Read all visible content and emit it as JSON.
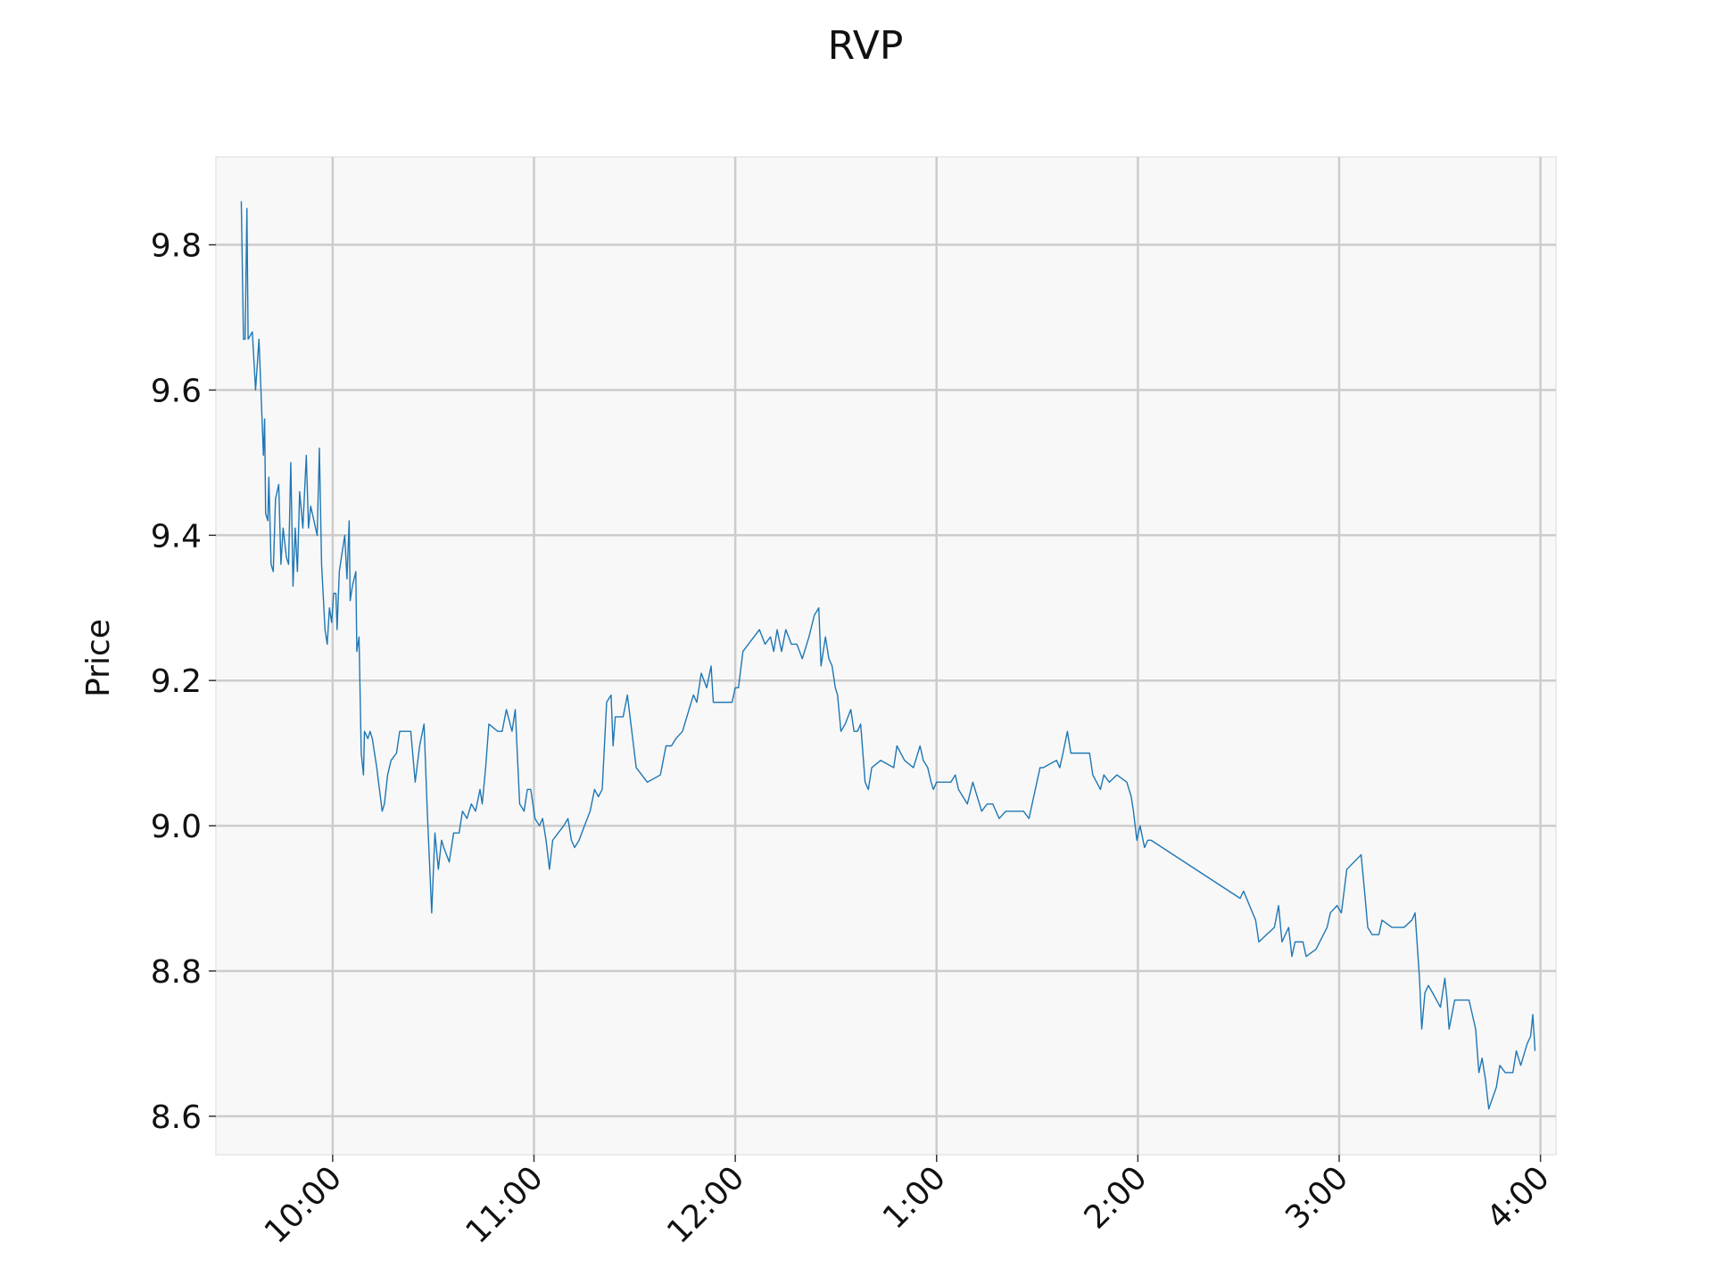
{
  "chart_data": {
    "type": "line",
    "title": "RVP",
    "ylabel": "Price",
    "x": [
      9.546,
      9.557,
      9.565,
      9.574,
      9.58,
      9.601,
      9.617,
      9.634,
      9.645,
      9.656,
      9.662,
      9.667,
      9.678,
      9.683,
      9.694,
      9.705,
      9.716,
      9.732,
      9.743,
      9.754,
      9.77,
      9.781,
      9.792,
      9.803,
      9.814,
      9.825,
      9.836,
      9.852,
      9.869,
      9.88,
      9.891,
      9.907,
      9.923,
      9.934,
      9.945,
      9.962,
      9.973,
      9.984,
      9.995,
      10.005,
      10.016,
      10.022,
      10.033,
      10.049,
      10.06,
      10.071,
      10.082,
      10.087,
      10.098,
      10.115,
      10.12,
      10.131,
      10.142,
      10.153,
      10.158,
      10.175,
      10.186,
      10.197,
      10.219,
      10.246,
      10.257,
      10.273,
      10.29,
      10.317,
      10.333,
      10.35,
      10.388,
      10.41,
      10.432,
      10.454,
      10.47,
      10.492,
      10.508,
      10.525,
      10.541,
      10.552,
      10.579,
      10.601,
      10.628,
      10.645,
      10.667,
      10.689,
      10.71,
      10.732,
      10.743,
      10.76,
      10.776,
      10.82,
      10.842,
      10.863,
      10.891,
      10.907,
      10.929,
      10.951,
      10.967,
      10.984,
      11.005,
      11.027,
      11.043,
      11.06,
      11.077,
      11.093,
      11.12,
      11.148,
      11.169,
      11.186,
      11.202,
      11.224,
      11.251,
      11.279,
      11.301,
      11.32,
      11.339,
      11.361,
      11.383,
      11.393,
      11.404,
      11.443,
      11.464,
      11.486,
      11.508,
      11.563,
      11.628,
      11.656,
      11.683,
      11.705,
      11.738,
      11.792,
      11.809,
      11.831,
      11.858,
      11.88,
      11.891,
      11.984,
      12.0,
      12.016,
      12.038,
      12.12,
      12.148,
      12.175,
      12.191,
      12.208,
      12.23,
      12.251,
      12.279,
      12.306,
      12.333,
      12.366,
      12.393,
      12.415,
      12.426,
      12.448,
      12.465,
      12.481,
      12.497,
      12.508,
      12.525,
      12.546,
      12.574,
      12.59,
      12.607,
      12.623,
      12.645,
      12.661,
      12.678,
      12.722,
      12.787,
      12.803,
      12.841,
      12.885,
      12.918,
      12.934,
      12.956,
      12.973,
      12.984,
      13.0,
      13.027,
      13.049,
      13.071,
      13.093,
      13.109,
      13.131,
      13.153,
      13.18,
      13.202,
      13.224,
      13.251,
      13.279,
      13.311,
      13.344,
      13.383,
      13.432,
      13.459,
      13.514,
      13.53,
      13.596,
      13.612,
      13.628,
      13.65,
      13.667,
      13.76,
      13.776,
      13.814,
      13.831,
      13.858,
      13.896,
      13.945,
      13.956,
      13.967,
      13.978,
      13.995,
      14.011,
      14.033,
      14.049,
      14.066,
      14.508,
      14.525,
      14.585,
      14.601,
      14.639,
      14.678,
      14.699,
      14.716,
      14.749,
      14.765,
      14.781,
      14.82,
      14.836,
      14.885,
      14.94,
      14.956,
      14.989,
      15.011,
      15.038,
      15.109,
      15.126,
      15.142,
      15.164,
      15.197,
      15.213,
      15.262,
      15.322,
      15.361,
      15.377,
      15.399,
      15.41,
      15.426,
      15.443,
      15.464,
      15.503,
      15.525,
      15.536,
      15.546,
      15.574,
      15.645,
      15.678,
      15.694,
      15.71,
      15.727,
      15.743,
      15.781,
      15.798,
      15.825,
      15.863,
      15.88,
      15.902,
      15.934,
      15.951,
      15.962,
      15.973
    ],
    "values": [
      9.86,
      9.67,
      9.67,
      9.85,
      9.67,
      9.68,
      9.6,
      9.67,
      9.59,
      9.51,
      9.56,
      9.43,
      9.42,
      9.48,
      9.36,
      9.35,
      9.45,
      9.47,
      9.36,
      9.41,
      9.37,
      9.36,
      9.5,
      9.33,
      9.41,
      9.35,
      9.46,
      9.41,
      9.51,
      9.41,
      9.44,
      9.42,
      9.4,
      9.52,
      9.36,
      9.27,
      9.25,
      9.3,
      9.28,
      9.32,
      9.32,
      9.27,
      9.35,
      9.38,
      9.4,
      9.34,
      9.42,
      9.31,
      9.33,
      9.35,
      9.24,
      9.26,
      9.1,
      9.07,
      9.13,
      9.12,
      9.13,
      9.12,
      9.08,
      9.02,
      9.03,
      9.07,
      9.09,
      9.1,
      9.13,
      9.13,
      9.13,
      9.06,
      9.11,
      9.14,
      9.02,
      8.88,
      8.99,
      8.94,
      8.98,
      8.97,
      8.95,
      8.99,
      8.99,
      9.02,
      9.01,
      9.03,
      9.02,
      9.05,
      9.03,
      9.08,
      9.14,
      9.13,
      9.13,
      9.16,
      9.13,
      9.16,
      9.03,
      9.02,
      9.05,
      9.05,
      9.01,
      9.0,
      9.01,
      8.98,
      8.94,
      8.98,
      8.99,
      9.0,
      9.01,
      8.98,
      8.97,
      8.98,
      9.0,
      9.02,
      9.05,
      9.04,
      9.05,
      9.17,
      9.18,
      9.11,
      9.15,
      9.15,
      9.18,
      9.13,
      9.08,
      9.06,
      9.07,
      9.11,
      9.11,
      9.12,
      9.13,
      9.18,
      9.17,
      9.21,
      9.19,
      9.22,
      9.17,
      9.17,
      9.19,
      9.19,
      9.24,
      9.27,
      9.25,
      9.26,
      9.24,
      9.27,
      9.24,
      9.27,
      9.25,
      9.25,
      9.23,
      9.26,
      9.29,
      9.3,
      9.22,
      9.26,
      9.23,
      9.22,
      9.19,
      9.18,
      9.13,
      9.14,
      9.16,
      9.13,
      9.13,
      9.14,
      9.06,
      9.05,
      9.08,
      9.09,
      9.08,
      9.11,
      9.09,
      9.08,
      9.11,
      9.09,
      9.08,
      9.06,
      9.05,
      9.06,
      9.06,
      9.06,
      9.06,
      9.07,
      9.05,
      9.04,
      9.03,
      9.06,
      9.04,
      9.02,
      9.03,
      9.03,
      9.01,
      9.02,
      9.02,
      9.02,
      9.01,
      9.08,
      9.08,
      9.09,
      9.08,
      9.1,
      9.13,
      9.1,
      9.1,
      9.07,
      9.05,
      9.07,
      9.06,
      9.07,
      9.06,
      9.05,
      9.04,
      9.02,
      8.98,
      9.0,
      8.97,
      8.98,
      8.98,
      8.9,
      8.91,
      8.87,
      8.84,
      8.85,
      8.86,
      8.89,
      8.84,
      8.86,
      8.82,
      8.84,
      8.84,
      8.82,
      8.83,
      8.86,
      8.88,
      8.89,
      8.88,
      8.94,
      8.96,
      8.91,
      8.86,
      8.85,
      8.85,
      8.87,
      8.86,
      8.86,
      8.87,
      8.88,
      8.79,
      8.72,
      8.77,
      8.78,
      8.77,
      8.75,
      8.79,
      8.76,
      8.72,
      8.76,
      8.76,
      8.72,
      8.66,
      8.68,
      8.65,
      8.61,
      8.64,
      8.67,
      8.66,
      8.66,
      8.69,
      8.67,
      8.7,
      8.71,
      8.74,
      8.69
    ],
    "color": "#1f77b4",
    "xlim": [
      9.42,
      16.077
    ],
    "xticks": [
      {
        "value": 10,
        "label": "10:00"
      },
      {
        "value": 11,
        "label": "11:00"
      },
      {
        "value": 12,
        "label": "12:00"
      },
      {
        "value": 13,
        "label": "1:00"
      },
      {
        "value": 14,
        "label": "2:00"
      },
      {
        "value": 15,
        "label": "3:00"
      },
      {
        "value": 16,
        "label": "4:00"
      }
    ],
    "ylim": [
      8.547,
      9.921
    ],
    "yticks": [
      {
        "value": 8.6,
        "label": "8.6"
      },
      {
        "value": 8.8,
        "label": "8.8"
      },
      {
        "value": 9.0,
        "label": "9.0"
      },
      {
        "value": 9.2,
        "label": "9.2"
      },
      {
        "value": 9.4,
        "label": "9.4"
      },
      {
        "value": 9.6,
        "label": "9.6"
      },
      {
        "value": 9.8,
        "label": "9.8"
      }
    ],
    "grid": true
  }
}
